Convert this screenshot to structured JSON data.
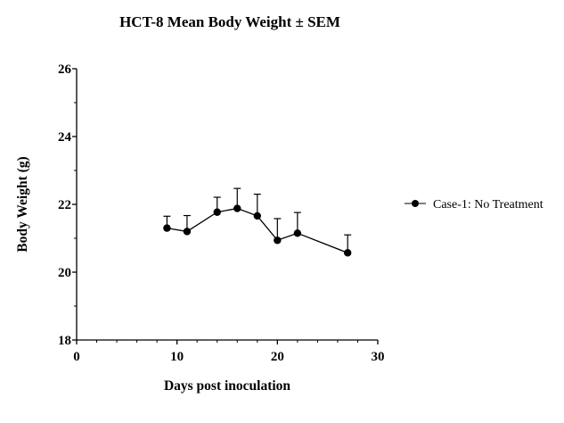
{
  "chart_data": {
    "type": "line",
    "title": "HCT-8 Mean Body Weight ± SEM",
    "xlabel": "Days post inoculation",
    "ylabel": "Body Weight (g)",
    "xlim": [
      0,
      30
    ],
    "ylim": [
      18,
      26
    ],
    "xticks": [
      0,
      10,
      20,
      30
    ],
    "yticks": [
      18,
      20,
      22,
      24,
      26
    ],
    "x_tick_labels": [
      "0",
      "10",
      "20",
      "30"
    ],
    "y_tick_labels": [
      "18",
      "20",
      "22",
      "24",
      "26"
    ],
    "grid": false,
    "legend_position": "right",
    "error_bars": "SEM (upper only)",
    "series": [
      {
        "name": "Case-1: No Treatment",
        "color": "#000000",
        "marker": "circle",
        "x": [
          9,
          11,
          14,
          16,
          18,
          20,
          22,
          27
        ],
        "y": [
          21.3,
          21.2,
          21.77,
          21.88,
          21.66,
          20.94,
          21.15,
          20.57
        ],
        "sem": [
          0.35,
          0.47,
          0.44,
          0.59,
          0.64,
          0.64,
          0.61,
          0.53
        ]
      }
    ]
  }
}
